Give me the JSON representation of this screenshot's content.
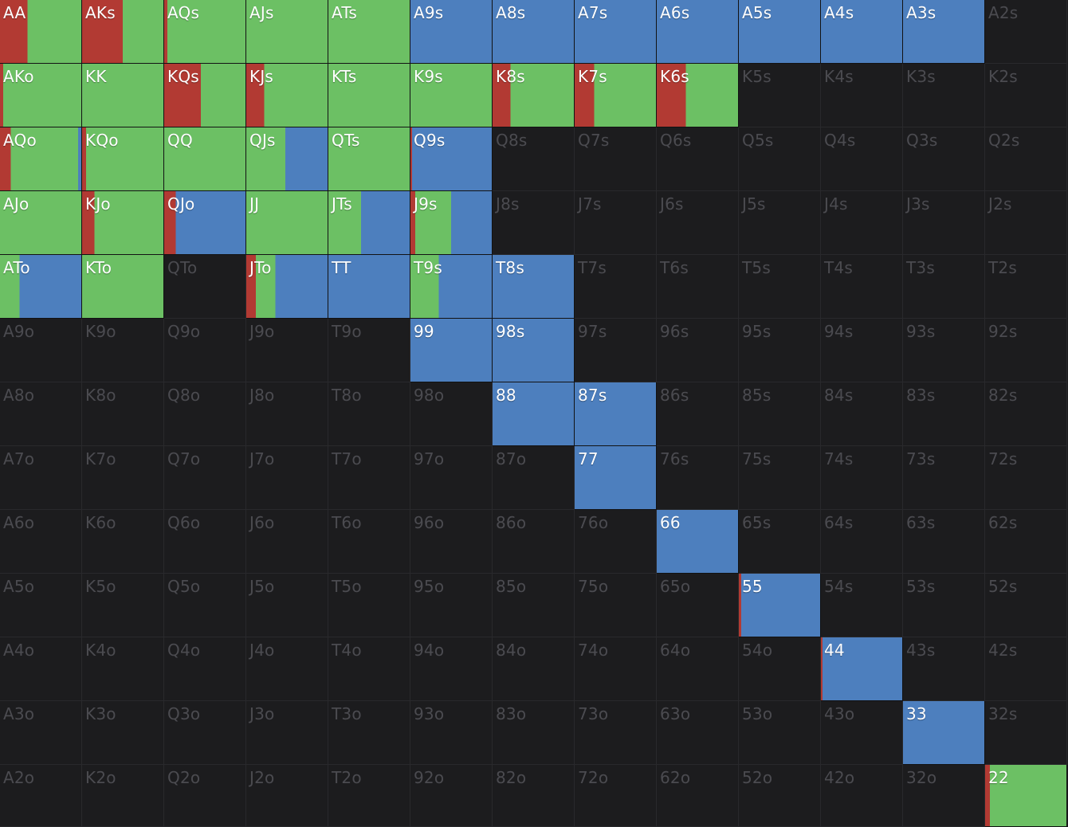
{
  "colors": {
    "background": "#1c1c1e",
    "inactive_text": "#4b4b50",
    "active_text": "#ffffff",
    "raise": "#b23a33",
    "call": "#6cc064",
    "fold": "#4d7fbe"
  },
  "ranks": [
    "A",
    "K",
    "Q",
    "J",
    "T",
    "9",
    "8",
    "7",
    "6",
    "5",
    "4",
    "3",
    "2"
  ],
  "legend_order": [
    "raise",
    "call",
    "fold"
  ],
  "hands": [
    [
      "AA",
      "AKs",
      "AQs",
      "AJs",
      "ATs",
      "A9s",
      "A8s",
      "A7s",
      "A6s",
      "A5s",
      "A4s",
      "A3s",
      "A2s"
    ],
    [
      "AKo",
      "KK",
      "KQs",
      "KJs",
      "KTs",
      "K9s",
      "K8s",
      "K7s",
      "K6s",
      "K5s",
      "K4s",
      "K3s",
      "K2s"
    ],
    [
      "AQo",
      "KQo",
      "QQ",
      "QJs",
      "QTs",
      "Q9s",
      "Q8s",
      "Q7s",
      "Q6s",
      "Q5s",
      "Q4s",
      "Q3s",
      "Q2s"
    ],
    [
      "AJo",
      "KJo",
      "QJo",
      "JJ",
      "JTs",
      "J9s",
      "J8s",
      "J7s",
      "J6s",
      "J5s",
      "J4s",
      "J3s",
      "J2s"
    ],
    [
      "ATo",
      "KTo",
      "QTo",
      "JTo",
      "TT",
      "T9s",
      "T8s",
      "T7s",
      "T6s",
      "T5s",
      "T4s",
      "T3s",
      "T2s"
    ],
    [
      "A9o",
      "K9o",
      "Q9o",
      "J9o",
      "T9o",
      "99",
      "98s",
      "97s",
      "96s",
      "95s",
      "94s",
      "93s",
      "92s"
    ],
    [
      "A8o",
      "K8o",
      "Q8o",
      "J8o",
      "T8o",
      "98o",
      "88",
      "87s",
      "86s",
      "85s",
      "84s",
      "83s",
      "82s"
    ],
    [
      "A7o",
      "K7o",
      "Q7o",
      "J7o",
      "T7o",
      "97o",
      "87o",
      "77",
      "76s",
      "75s",
      "74s",
      "73s",
      "72s"
    ],
    [
      "A6o",
      "K6o",
      "Q6o",
      "J6o",
      "T6o",
      "96o",
      "86o",
      "76o",
      "66",
      "65s",
      "64s",
      "63s",
      "62s"
    ],
    [
      "A5o",
      "K5o",
      "Q5o",
      "J5o",
      "T5o",
      "95o",
      "85o",
      "75o",
      "65o",
      "55",
      "54s",
      "53s",
      "52s"
    ],
    [
      "A4o",
      "K4o",
      "Q4o",
      "J4o",
      "T4o",
      "94o",
      "84o",
      "74o",
      "64o",
      "54o",
      "44",
      "43s",
      "42s"
    ],
    [
      "A3o",
      "K3o",
      "Q3o",
      "J3o",
      "T3o",
      "93o",
      "83o",
      "73o",
      "63o",
      "53o",
      "43o",
      "33",
      "32s"
    ],
    [
      "A2o",
      "K2o",
      "Q2o",
      "J2o",
      "T2o",
      "92o",
      "82o",
      "72o",
      "62o",
      "52o",
      "42o",
      "32o",
      "22"
    ]
  ],
  "strategy": {
    "AA": {
      "raise": 0.34,
      "call": 0.66,
      "fold": 0
    },
    "AKs": {
      "raise": 0.5,
      "call": 0.5,
      "fold": 0
    },
    "AQs": {
      "raise": 0.04,
      "call": 0.96,
      "fold": 0
    },
    "AJs": {
      "raise": 0,
      "call": 1,
      "fold": 0
    },
    "ATs": {
      "raise": 0,
      "call": 1,
      "fold": 0
    },
    "A9s": {
      "raise": 0,
      "call": 0,
      "fold": 1
    },
    "A8s": {
      "raise": 0,
      "call": 0,
      "fold": 1
    },
    "A7s": {
      "raise": 0,
      "call": 0,
      "fold": 1
    },
    "A6s": {
      "raise": 0,
      "call": 0,
      "fold": 1
    },
    "A5s": {
      "raise": 0,
      "call": 0,
      "fold": 1
    },
    "A4s": {
      "raise": 0,
      "call": 0,
      "fold": 1
    },
    "A3s": {
      "raise": 0,
      "call": 0,
      "fold": 1
    },
    "AKo": {
      "raise": 0.04,
      "call": 0.96,
      "fold": 0
    },
    "KK": {
      "raise": 0,
      "call": 1,
      "fold": 0
    },
    "KQs": {
      "raise": 0.45,
      "call": 0.55,
      "fold": 0
    },
    "KJs": {
      "raise": 0.22,
      "call": 0.78,
      "fold": 0
    },
    "KTs": {
      "raise": 0,
      "call": 1,
      "fold": 0
    },
    "K9s": {
      "raise": 0,
      "call": 1,
      "fold": 0
    },
    "K8s": {
      "raise": 0.22,
      "call": 0.78,
      "fold": 0
    },
    "K7s": {
      "raise": 0.24,
      "call": 0.76,
      "fold": 0
    },
    "K6s": {
      "raise": 0.36,
      "call": 0.64,
      "fold": 0
    },
    "AQo": {
      "raise": 0.13,
      "call": 0.83,
      "fold": 0.04
    },
    "KQo": {
      "raise": 0.05,
      "call": 0.95,
      "fold": 0
    },
    "QQ": {
      "raise": 0,
      "call": 1,
      "fold": 0
    },
    "QJs": {
      "raise": 0,
      "call": 0.48,
      "fold": 0.52
    },
    "QTs": {
      "raise": 0,
      "call": 1,
      "fold": 0
    },
    "Q9s": {
      "raise": 0.02,
      "call": 0,
      "fold": 0.98
    },
    "AJo": {
      "raise": 0,
      "call": 1,
      "fold": 0
    },
    "KJo": {
      "raise": 0.15,
      "call": 0.85,
      "fold": 0
    },
    "QJo": {
      "raise": 0.14,
      "call": 0,
      "fold": 0.86
    },
    "JJ": {
      "raise": 0,
      "call": 1,
      "fold": 0
    },
    "JTs": {
      "raise": 0,
      "call": 0.4,
      "fold": 0.6
    },
    "J9s": {
      "raise": 0.06,
      "call": 0.44,
      "fold": 0.5
    },
    "ATo": {
      "raise": 0,
      "call": 0.24,
      "fold": 0.76
    },
    "KTo": {
      "raise": 0,
      "call": 1,
      "fold": 0
    },
    "JTo": {
      "raise": 0.12,
      "call": 0.24,
      "fold": 0.64
    },
    "TT": {
      "raise": 0,
      "call": 0,
      "fold": 1
    },
    "T9s": {
      "raise": 0,
      "call": 0.35,
      "fold": 0.65
    },
    "T8s": {
      "raise": 0,
      "call": 0,
      "fold": 1
    },
    "99": {
      "raise": 0,
      "call": 0,
      "fold": 1
    },
    "98s": {
      "raise": 0,
      "call": 0,
      "fold": 1
    },
    "88": {
      "raise": 0,
      "call": 0,
      "fold": 1
    },
    "87s": {
      "raise": 0,
      "call": 0,
      "fold": 1
    },
    "77": {
      "raise": 0,
      "call": 0,
      "fold": 1
    },
    "66": {
      "raise": 0,
      "call": 0,
      "fold": 1
    },
    "55": {
      "raise": 0.03,
      "call": 0,
      "fold": 0.97
    },
    "44": {
      "raise": 0.02,
      "call": 0,
      "fold": 0.98
    },
    "33": {
      "raise": 0,
      "call": 0,
      "fold": 1
    },
    "22": {
      "raise": 0.06,
      "call": 0.94,
      "fold": 0
    }
  }
}
